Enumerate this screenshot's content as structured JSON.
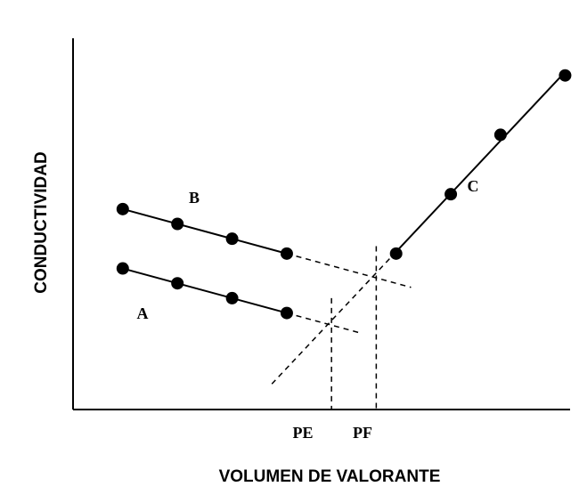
{
  "chart_data": {
    "type": "line",
    "xlabel": "VOLUMEN DE VALORANTE",
    "ylabel": "CONDUCTIVIDAD",
    "xlim": [
      0,
      10
    ],
    "ylim": [
      0,
      10
    ],
    "grid": false,
    "series": [
      {
        "name": "A",
        "x": [
          1.0,
          2.1,
          3.2,
          4.3
        ],
        "y": [
          3.8,
          3.4,
          3.0,
          2.6
        ]
      },
      {
        "name": "B",
        "x": [
          1.0,
          2.1,
          3.2,
          4.3
        ],
        "y": [
          5.4,
          5.0,
          4.6,
          4.2
        ]
      },
      {
        "name": "C",
        "x": [
          6.5,
          7.6,
          8.6,
          9.9
        ],
        "y": [
          4.2,
          5.8,
          7.4,
          9.0
        ]
      }
    ],
    "markers": [
      {
        "label": "PE",
        "x": 5.2
      },
      {
        "label": "PF",
        "x": 6.1
      }
    ]
  }
}
